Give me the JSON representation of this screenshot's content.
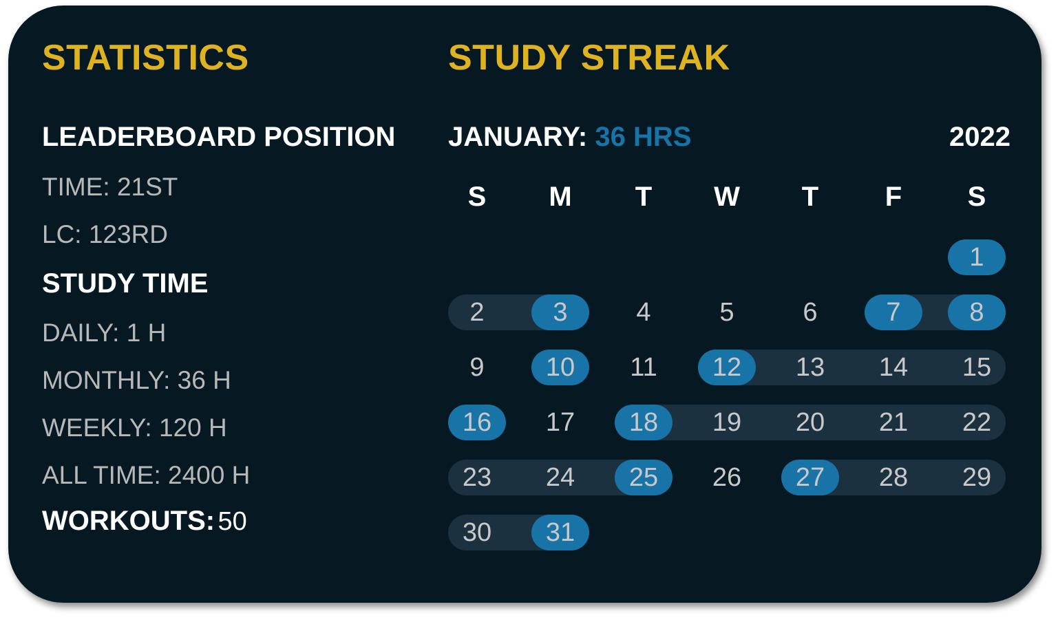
{
  "statistics": {
    "title": "STATISTICS",
    "leaderboard_heading": "LEADERBOARD POSITION",
    "leaderboard": [
      "TIME: 21ST",
      "LC: 123RD"
    ],
    "study_time_heading": "STUDY TIME",
    "study_time": [
      "DAILY: 1 H",
      "MONTHLY: 36 H",
      "WEEKLY: 120 H",
      "ALL TIME: 2400 H"
    ],
    "workouts_label": "WORKOUTS:",
    "workouts_value": "50"
  },
  "streak": {
    "title": "STUDY STREAK",
    "month_label": "JANUARY:",
    "month_hours": "36 HRS",
    "year": "2022",
    "weekdays": [
      "S",
      "M",
      "T",
      "W",
      "T",
      "F",
      "S"
    ],
    "first_weekday_index": 6,
    "days_in_month": 31,
    "studied_days": [
      1,
      3,
      7,
      8,
      10,
      12,
      16,
      18,
      25,
      27,
      31
    ],
    "streak_ranges": [
      [
        2,
        3
      ],
      [
        7,
        8
      ],
      [
        12,
        15
      ],
      [
        18,
        22
      ],
      [
        23,
        25
      ],
      [
        27,
        29
      ],
      [
        30,
        31
      ]
    ],
    "colors": {
      "accent": "#DFB21F",
      "highlight": "#1874A6",
      "streak_band": "#1C3140",
      "background": "#061923"
    }
  }
}
